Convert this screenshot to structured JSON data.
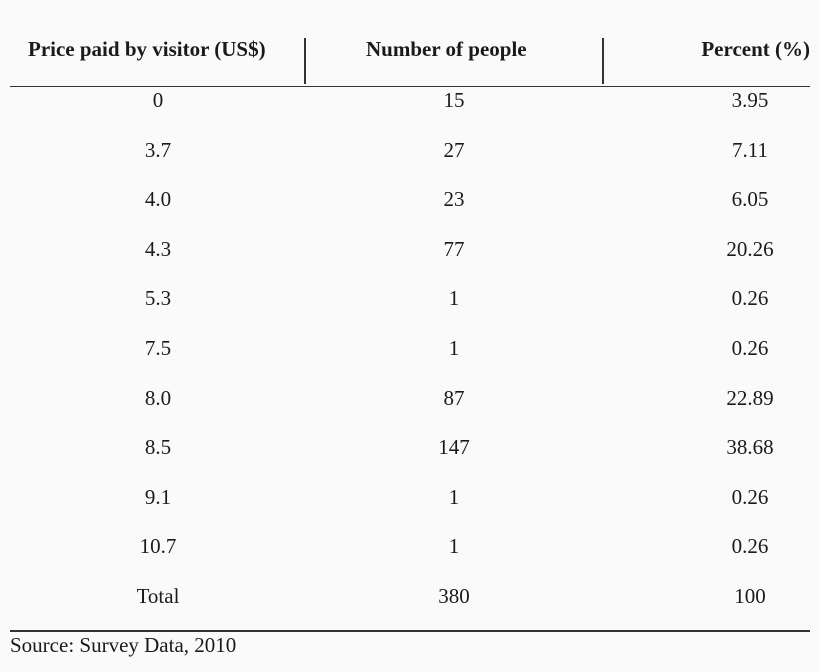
{
  "table": {
    "headers": {
      "price": "Price paid by visitor (US$)",
      "number": "Number of people",
      "percent": "Percent (%)"
    },
    "rows": [
      {
        "price": "0",
        "number": "15",
        "percent": "3.95"
      },
      {
        "price": "3.7",
        "number": "27",
        "percent": "7.11"
      },
      {
        "price": "4.0",
        "number": "23",
        "percent": "6.05"
      },
      {
        "price": "4.3",
        "number": "77",
        "percent": "20.26"
      },
      {
        "price": "5.3",
        "number": "1",
        "percent": "0.26"
      },
      {
        "price": "7.5",
        "number": "1",
        "percent": "0.26"
      },
      {
        "price": "8.0",
        "number": "87",
        "percent": "22.89"
      },
      {
        "price": "8.5",
        "number": "147",
        "percent": "38.68"
      },
      {
        "price": "9.1",
        "number": "1",
        "percent": "0.26"
      },
      {
        "price": "10.7",
        "number": "1",
        "percent": "0.26"
      },
      {
        "price": "Total",
        "number": "380",
        "percent": "100"
      }
    ]
  },
  "source": "Source: Survey Data, 2010"
}
